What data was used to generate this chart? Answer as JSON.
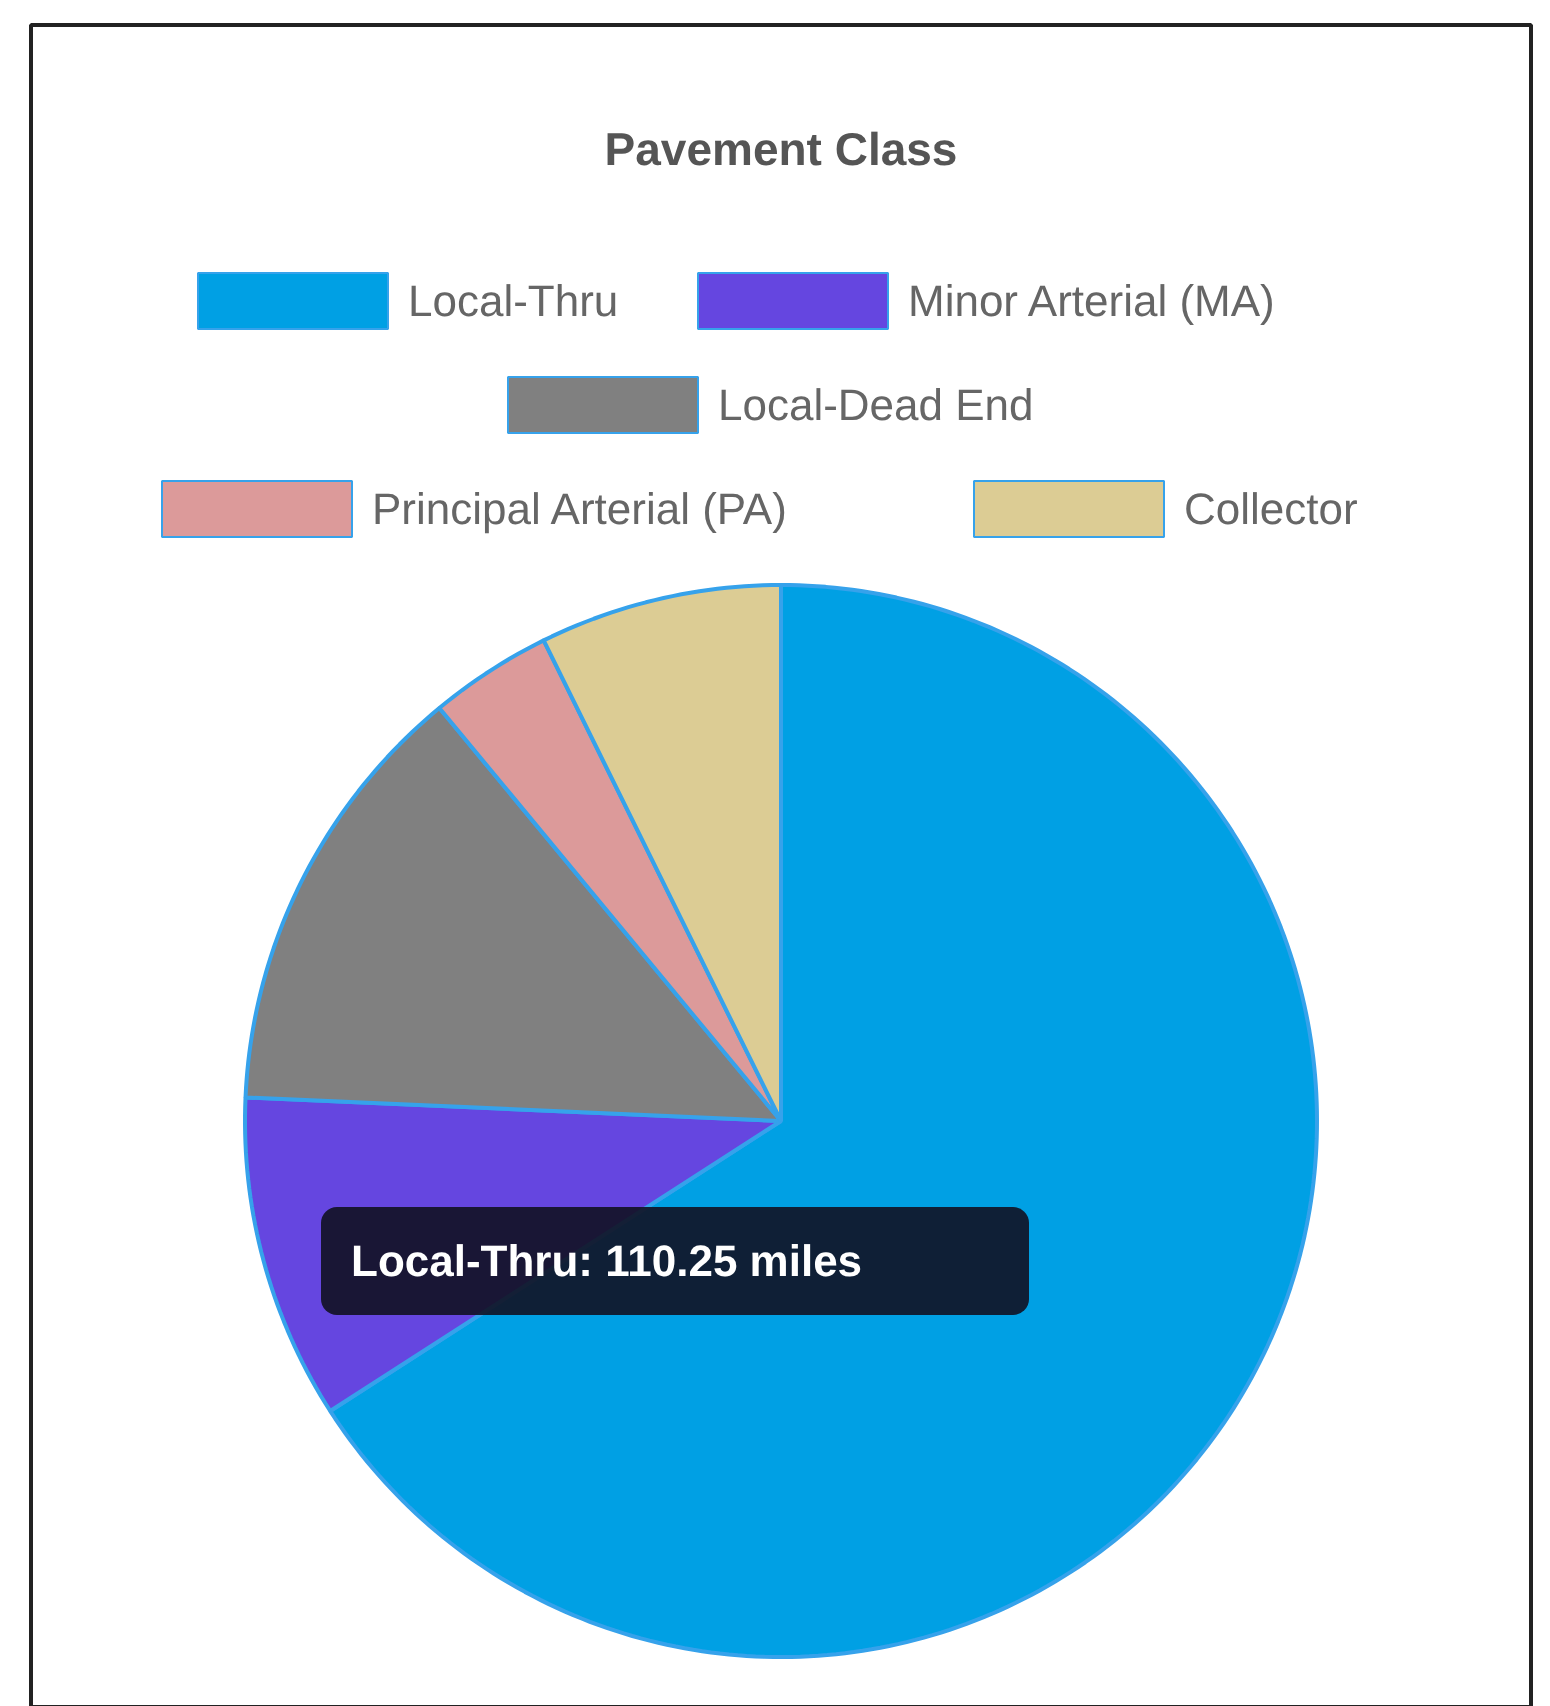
{
  "chart_data": {
    "type": "pie",
    "title": "Pavement Class",
    "categories": [
      "Local-Thru",
      "Minor Arterial (MA)",
      "Local-Dead End",
      "Principal Arterial (PA)",
      "Collector"
    ],
    "values": [
      65.9,
      9.8,
      13.3,
      3.7,
      7.3
    ],
    "colors": [
      "#00a0e4",
      "#6546e0",
      "#808080",
      "#dc9a9a",
      "#dccc94"
    ],
    "legend": "top",
    "annotations": [
      "Local-Thru: 110.25 miles"
    ]
  }
}
